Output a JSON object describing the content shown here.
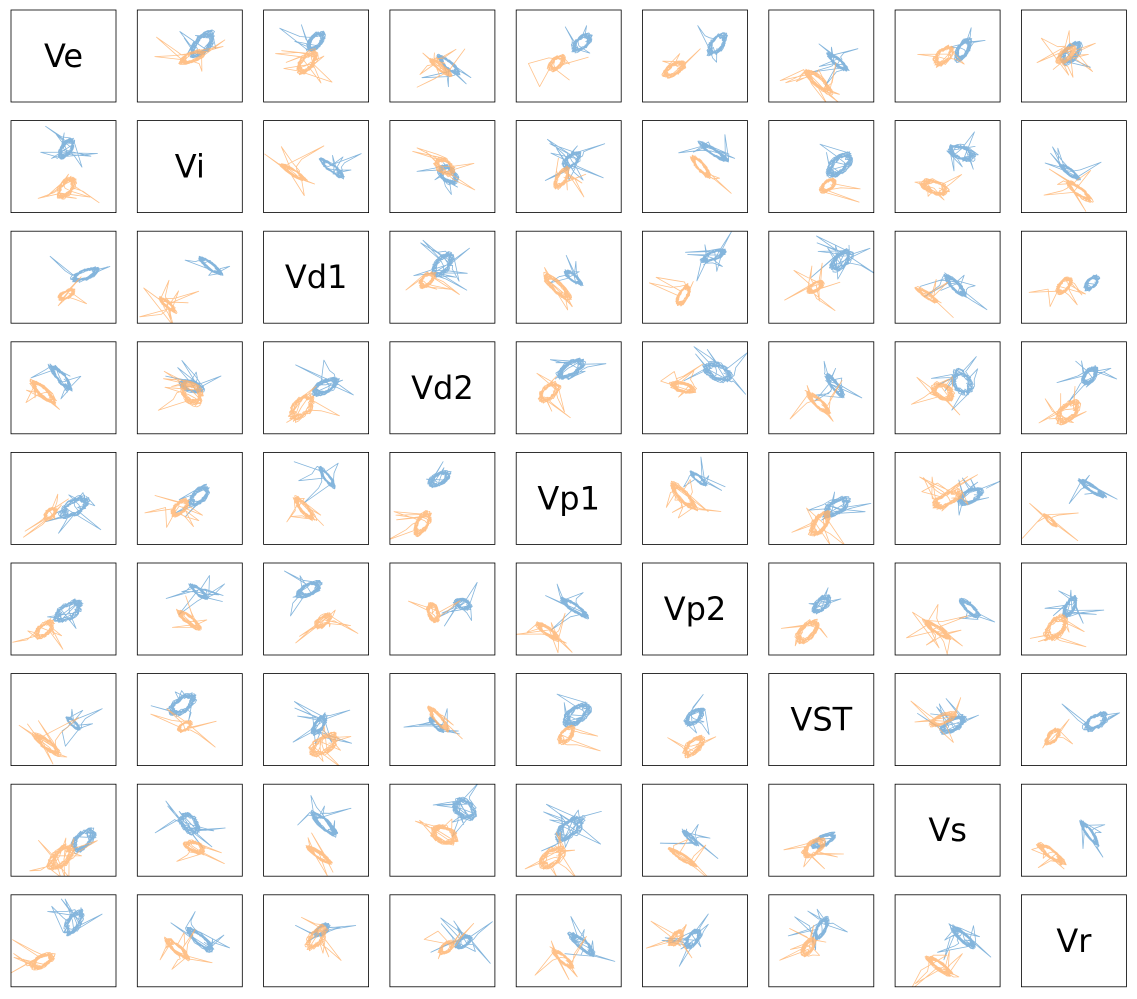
{
  "chart_data": {
    "type": "scatter-matrix",
    "title": "",
    "variables": [
      "Ve",
      "Vi",
      "Vd1",
      "Vd2",
      "Vp1",
      "Vp2",
      "VST",
      "Vs",
      "Vr"
    ],
    "series": [
      {
        "name": "",
        "color": "#6fa8d6"
      },
      {
        "name": "",
        "color": "#ffb26b"
      }
    ],
    "grid": false,
    "axes": "hidden",
    "diagonal": "variable-name",
    "off_diagonal": "pairwise phase-plane trajectories (line traces)"
  }
}
